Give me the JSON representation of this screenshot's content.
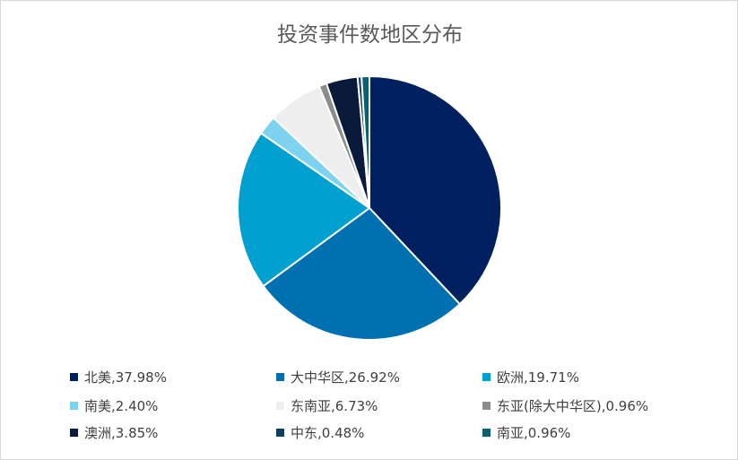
{
  "chart_data": {
    "type": "pie",
    "title": "投资事件数地区分布",
    "legend_position": "bottom",
    "slices": [
      {
        "name": "北美",
        "value": 37.98,
        "label": "北美,37.98%",
        "color": "#002060"
      },
      {
        "name": "大中华区",
        "value": 26.92,
        "label": "大中华区,26.92%",
        "color": "#0070b0"
      },
      {
        "name": "欧洲",
        "value": 19.71,
        "label": "欧洲,19.71%",
        "color": "#00a0d0"
      },
      {
        "name": "南美",
        "value": 2.4,
        "label": "南美,2.40%",
        "color": "#7dd3ee"
      },
      {
        "name": "东南亚",
        "value": 6.73,
        "label": "东南亚,6.73%",
        "color": "#eeeeee"
      },
      {
        "name": "东亚(除大中华区)",
        "value": 0.96,
        "label": "东亚(除大中华区),0.96%",
        "color": "#8c8c8c"
      },
      {
        "name": "澳洲",
        "value": 3.85,
        "label": "澳洲,3.85%",
        "color": "#0a1a3a"
      },
      {
        "name": "中东",
        "value": 0.48,
        "label": "中东,0.48%",
        "color": "#0e3f63"
      },
      {
        "name": "南亚",
        "value": 0.96,
        "label": "南亚,0.96%",
        "color": "#0b6070"
      }
    ]
  }
}
